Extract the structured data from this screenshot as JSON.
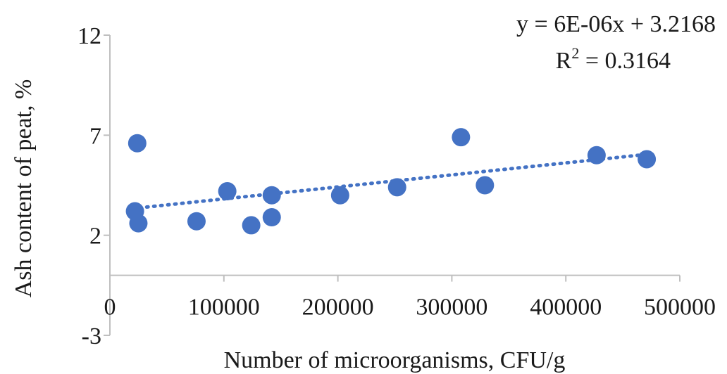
{
  "chart_data": {
    "type": "scatter",
    "xlabel": "Number of microorganisms, CFU/g",
    "ylabel": "Ash content of peat, %",
    "xlim": [
      0,
      500000
    ],
    "ylim": [
      -3,
      12
    ],
    "x_ticks": [
      0,
      100000,
      200000,
      300000,
      400000,
      500000
    ],
    "y_ticks": [
      -3,
      2,
      7,
      12
    ],
    "x_tick_labels": [
      "0",
      "100000",
      "200000",
      "300000",
      "400000",
      "500000"
    ],
    "y_tick_labels": [
      "-3",
      "2",
      "7",
      "12"
    ],
    "points": [
      {
        "x": 24000,
        "y": 6.6
      },
      {
        "x": 22000,
        "y": 3.2
      },
      {
        "x": 25000,
        "y": 2.6
      },
      {
        "x": 76000,
        "y": 2.7
      },
      {
        "x": 103000,
        "y": 4.2
      },
      {
        "x": 124000,
        "y": 2.5
      },
      {
        "x": 142000,
        "y": 2.9
      },
      {
        "x": 142000,
        "y": 4.0
      },
      {
        "x": 202000,
        "y": 4.0
      },
      {
        "x": 252000,
        "y": 4.4
      },
      {
        "x": 308000,
        "y": 6.9
      },
      {
        "x": 329000,
        "y": 4.5
      },
      {
        "x": 427000,
        "y": 6.0
      },
      {
        "x": 471000,
        "y": 5.8
      }
    ],
    "trendline": {
      "type": "linear",
      "slope": 6e-06,
      "intercept": 3.2168,
      "x_range": [
        20000,
        475000
      ],
      "equation_label": "y = 6E-06x + 3.2168",
      "r2_prefix": "R",
      "r2_sup": "2",
      "r2_value": " = 0.3164"
    },
    "grid": false,
    "legend": "none"
  }
}
